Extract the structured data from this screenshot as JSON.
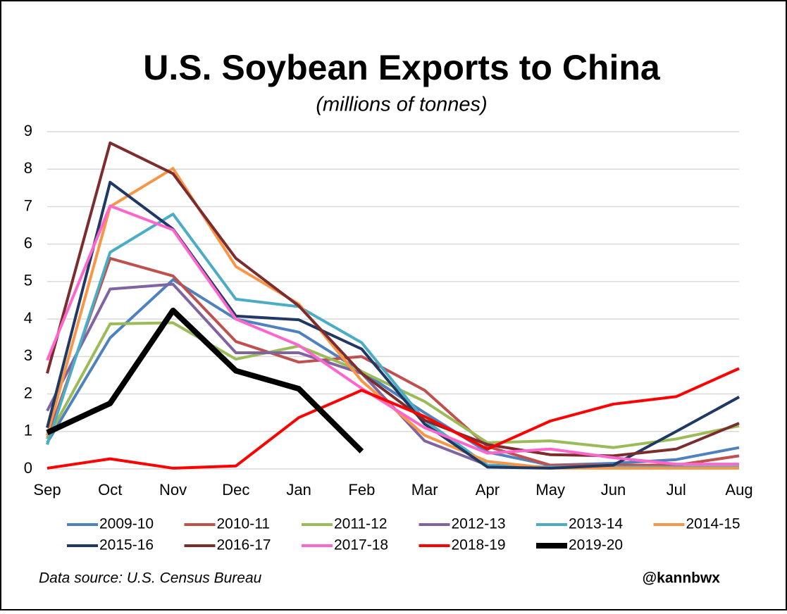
{
  "chart_data": {
    "type": "line",
    "title": "U.S. Soybean Exports to China",
    "subtitle": "(millions of tonnes)",
    "source": "Data source: U.S. Census Bureau",
    "credit": "@kannbwx",
    "categories": [
      "Sep",
      "Oct",
      "Nov",
      "Dec",
      "Jan",
      "Feb",
      "Mar",
      "Apr",
      "May",
      "Jun",
      "Jul",
      "Aug"
    ],
    "ylim": [
      0,
      9
    ],
    "yticks": [
      0,
      1,
      2,
      3,
      4,
      5,
      6,
      7,
      8,
      9
    ],
    "grid": true,
    "series": [
      {
        "name": "2009-10",
        "color": "#4f81bd",
        "width": 4,
        "values": [
          0.7,
          3.5,
          5.05,
          4.0,
          3.65,
          2.6,
          1.5,
          0.45,
          0.1,
          0.15,
          0.25,
          0.57
        ]
      },
      {
        "name": "2010-11",
        "color": "#c0504d",
        "width": 4,
        "values": [
          0.8,
          5.62,
          5.15,
          3.4,
          2.85,
          3.0,
          2.1,
          0.6,
          0.1,
          0.1,
          0.1,
          0.35
        ]
      },
      {
        "name": "2011-12",
        "color": "#9bbb59",
        "width": 4,
        "values": [
          0.8,
          3.87,
          3.9,
          2.93,
          3.28,
          2.6,
          1.8,
          0.7,
          0.75,
          0.57,
          0.8,
          1.15
        ]
      },
      {
        "name": "2012-13",
        "color": "#8064a2",
        "width": 4,
        "values": [
          1.55,
          4.8,
          4.93,
          3.1,
          3.1,
          2.55,
          0.75,
          0.1,
          0.05,
          0.05,
          0.05,
          0.05
        ]
      },
      {
        "name": "2013-14",
        "color": "#4bacc6",
        "width": 4,
        "values": [
          0.65,
          5.78,
          6.8,
          4.53,
          4.33,
          3.37,
          1.3,
          0.1,
          0.05,
          0.05,
          0.05,
          0.05
        ]
      },
      {
        "name": "2014-15",
        "color": "#f79646",
        "width": 4,
        "values": [
          0.9,
          7.0,
          8.02,
          5.4,
          4.4,
          2.35,
          0.9,
          0.2,
          0.02,
          0.02,
          0.02,
          0.02
        ]
      },
      {
        "name": "2015-16",
        "color": "#1f3864",
        "width": 4,
        "values": [
          1.1,
          7.65,
          6.4,
          4.08,
          3.98,
          3.2,
          1.2,
          0.05,
          0.02,
          0.1,
          1.0,
          1.92
        ]
      },
      {
        "name": "2016-17",
        "color": "#7b2c2c",
        "width": 4,
        "values": [
          2.55,
          8.7,
          7.88,
          5.62,
          4.35,
          2.55,
          1.3,
          0.65,
          0.38,
          0.35,
          0.53,
          1.22
        ]
      },
      {
        "name": "2017-18",
        "color": "#ff66cc",
        "width": 4,
        "values": [
          2.9,
          7.02,
          6.38,
          4.0,
          3.3,
          2.15,
          1.1,
          0.42,
          0.53,
          0.3,
          0.13,
          0.13
        ]
      },
      {
        "name": "2018-19",
        "color": "#ff0000",
        "width": 4,
        "values": [
          0.02,
          0.27,
          0.02,
          0.08,
          1.37,
          2.1,
          1.4,
          0.53,
          1.28,
          1.73,
          1.93,
          2.68
        ]
      },
      {
        "name": "2019-20",
        "color": "#000000",
        "width": 8,
        "values": [
          0.97,
          1.75,
          4.23,
          2.62,
          2.14,
          0.47,
          null,
          null,
          null,
          null,
          null,
          null
        ]
      }
    ]
  }
}
